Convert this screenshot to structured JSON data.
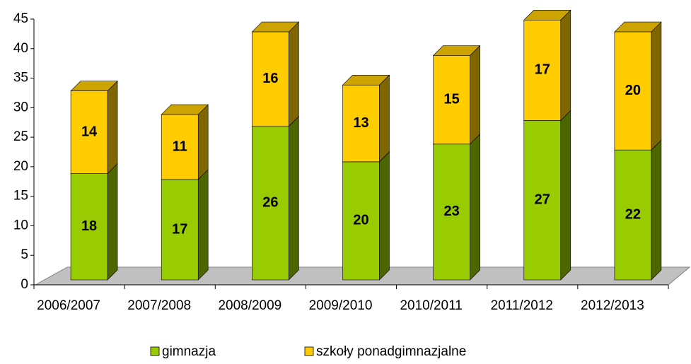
{
  "chart_data": {
    "type": "stacked_bar_3d",
    "categories": [
      "2006/2007",
      "2007/2008",
      "2008/2009",
      "2009/2010",
      "2010/2011",
      "2011/2012",
      "2012/2013"
    ],
    "series": [
      {
        "name": "gimnazja",
        "color": "#99cc00",
        "values": [
          18,
          17,
          26,
          20,
          23,
          27,
          22
        ]
      },
      {
        "name": "szkoły ponadgimnazjalne",
        "color": "#ffcc00",
        "values": [
          14,
          11,
          16,
          13,
          15,
          17,
          20
        ]
      }
    ],
    "ylim": [
      0,
      45
    ],
    "yticks": [
      0,
      5,
      10,
      15,
      20,
      25,
      30,
      35,
      40,
      45
    ],
    "legend": "bottom"
  }
}
